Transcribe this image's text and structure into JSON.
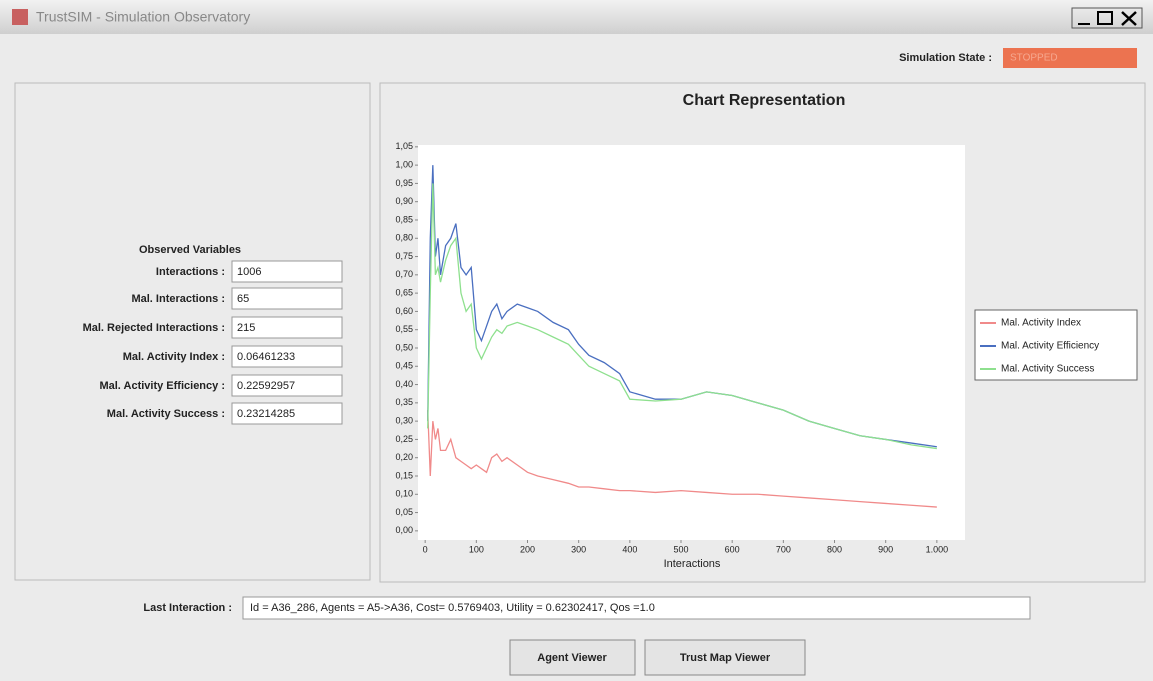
{
  "window": {
    "title": "TrustSIM - Simulation Observatory"
  },
  "state": {
    "label": "Simulation State :",
    "value": "STOPPED"
  },
  "variables": {
    "title": "Observed Variables",
    "rows": [
      {
        "label": "Interactions :",
        "value": "1006"
      },
      {
        "label": "Mal. Interactions :",
        "value": "65"
      },
      {
        "label": "Mal. Rejected Interactions :",
        "value": "215"
      },
      {
        "label": "Mal. Activity Index :",
        "value": "0.06461233"
      },
      {
        "label": "Mal. Activity Efficiency :",
        "value": "0.22592957"
      },
      {
        "label": "Mal. Activity Success :",
        "value": "0.23214285"
      }
    ]
  },
  "chart_data": {
    "type": "line",
    "title": "Chart Representation",
    "x_label": "Interactions",
    "x": [
      5,
      10,
      15,
      20,
      25,
      30,
      40,
      50,
      60,
      70,
      80,
      90,
      100,
      110,
      120,
      130,
      140,
      150,
      160,
      180,
      200,
      220,
      250,
      280,
      300,
      320,
      350,
      380,
      400,
      450,
      500,
      550,
      600,
      650,
      700,
      750,
      800,
      850,
      900,
      950,
      1000
    ],
    "series": [
      {
        "name": "Mal. Activity Index",
        "color": "#f08a8a",
        "values": [
          0.33,
          0.15,
          0.3,
          0.25,
          0.28,
          0.22,
          0.22,
          0.25,
          0.2,
          0.19,
          0.18,
          0.17,
          0.18,
          0.17,
          0.16,
          0.2,
          0.21,
          0.19,
          0.2,
          0.18,
          0.16,
          0.15,
          0.14,
          0.13,
          0.12,
          0.12,
          0.115,
          0.11,
          0.11,
          0.105,
          0.11,
          0.105,
          0.1,
          0.1,
          0.095,
          0.09,
          0.085,
          0.08,
          0.075,
          0.07,
          0.065
        ]
      },
      {
        "name": "Mal. Activity Efficiency",
        "color": "#4a6fc0",
        "values": [
          0.3,
          0.8,
          1.0,
          0.75,
          0.8,
          0.7,
          0.78,
          0.8,
          0.84,
          0.72,
          0.7,
          0.72,
          0.55,
          0.52,
          0.56,
          0.6,
          0.62,
          0.58,
          0.6,
          0.62,
          0.61,
          0.6,
          0.57,
          0.55,
          0.51,
          0.48,
          0.46,
          0.43,
          0.38,
          0.36,
          0.36,
          0.38,
          0.37,
          0.35,
          0.33,
          0.3,
          0.28,
          0.26,
          0.25,
          0.24,
          0.23
        ]
      },
      {
        "name": "Mal. Activity Success",
        "color": "#8ee08e",
        "values": [
          0.28,
          0.65,
          0.95,
          0.7,
          0.72,
          0.68,
          0.74,
          0.78,
          0.8,
          0.65,
          0.6,
          0.62,
          0.5,
          0.47,
          0.5,
          0.53,
          0.55,
          0.54,
          0.56,
          0.57,
          0.56,
          0.55,
          0.53,
          0.51,
          0.48,
          0.45,
          0.43,
          0.41,
          0.36,
          0.355,
          0.36,
          0.38,
          0.37,
          0.35,
          0.33,
          0.3,
          0.28,
          0.26,
          0.25,
          0.235,
          0.225
        ]
      }
    ],
    "xlim": [
      -14,
      1055
    ],
    "xticks": [
      0,
      100,
      200,
      300,
      400,
      500,
      600,
      700,
      800,
      900,
      {
        "value": 1000,
        "label": "1.000"
      }
    ],
    "ylim": [
      -0.025,
      1.055
    ],
    "yticks": [
      {
        "value": 0,
        "label": "0,00"
      },
      {
        "value": 0.05,
        "label": "0,05"
      },
      {
        "value": 0.1,
        "label": "0,10"
      },
      {
        "value": 0.15,
        "label": "0,15"
      },
      {
        "value": 0.2,
        "label": "0,20"
      },
      {
        "value": 0.25,
        "label": "0,25"
      },
      {
        "value": 0.3,
        "label": "0,30"
      },
      {
        "value": 0.35,
        "label": "0,35"
      },
      {
        "value": 0.4,
        "label": "0,40"
      },
      {
        "value": 0.45,
        "label": "0,45"
      },
      {
        "value": 0.5,
        "label": "0,50"
      },
      {
        "value": 0.55,
        "label": "0,55"
      },
      {
        "value": 0.6,
        "label": "0,60"
      },
      {
        "value": 0.65,
        "label": "0,65"
      },
      {
        "value": 0.7,
        "label": "0,70"
      },
      {
        "value": 0.75,
        "label": "0,75"
      },
      {
        "value": 0.8,
        "label": "0,80"
      },
      {
        "value": 0.85,
        "label": "0,85"
      },
      {
        "value": 0.9,
        "label": "0,90"
      },
      {
        "value": 0.95,
        "label": "0,95"
      },
      {
        "value": 1.0,
        "label": "1,00"
      },
      {
        "value": 1.05,
        "label": "1,05"
      }
    ],
    "legend": "right",
    "grid": false
  },
  "last_interaction": {
    "label": "Last Interaction :",
    "value": "Id = A36_286, Agents = A5->A36, Cost= 0.5769403, Utility = 0.62302417, Qos =1.0"
  },
  "buttons": [
    "Agent Viewer",
    "Trust Map Viewer"
  ]
}
